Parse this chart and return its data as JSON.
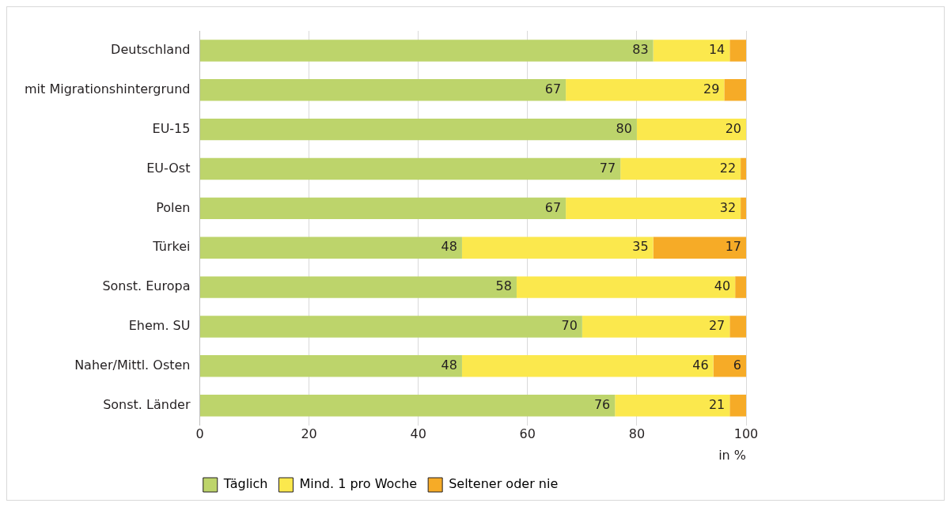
{
  "chart_data": {
    "type": "bar",
    "orientation": "horizontal",
    "stacked": true,
    "categories": [
      "Deutschland",
      "mit Migrationshintergrund",
      "EU-15",
      "EU-Ost",
      "Polen",
      "Türkei",
      "Sonst. Europa",
      "Ehem. SU",
      "Naher/Mittl. Osten",
      "Sonst. Länder"
    ],
    "series": [
      {
        "name": "Täglich",
        "color": "#bdd46b",
        "values": [
          83,
          67,
          80,
          77,
          67,
          48,
          58,
          70,
          48,
          76
        ],
        "value_labels": [
          "83",
          "67",
          "80",
          "77",
          "67",
          "48",
          "58",
          "70",
          "48",
          "76"
        ]
      },
      {
        "name": "Mind. 1 pro Woche",
        "color": "#fbe84d",
        "values": [
          14,
          29,
          20,
          22,
          32,
          35,
          40,
          27,
          46,
          21
        ],
        "value_labels": [
          "14",
          "29",
          "20",
          "22",
          "32",
          "35",
          "40",
          "27",
          "46",
          "21"
        ]
      },
      {
        "name": "Seltener oder nie",
        "color": "#f6ab27",
        "values": [
          3,
          4,
          0,
          1,
          1,
          17,
          2,
          3,
          6,
          3
        ],
        "value_labels": [
          null,
          null,
          null,
          null,
          null,
          "17",
          null,
          null,
          "6",
          null
        ]
      }
    ],
    "xlabel": "in %",
    "xlim": [
      0,
      100
    ],
    "xticks": [
      0,
      20,
      40,
      60,
      80,
      100
    ],
    "grid": "x",
    "legend": "bottom"
  }
}
